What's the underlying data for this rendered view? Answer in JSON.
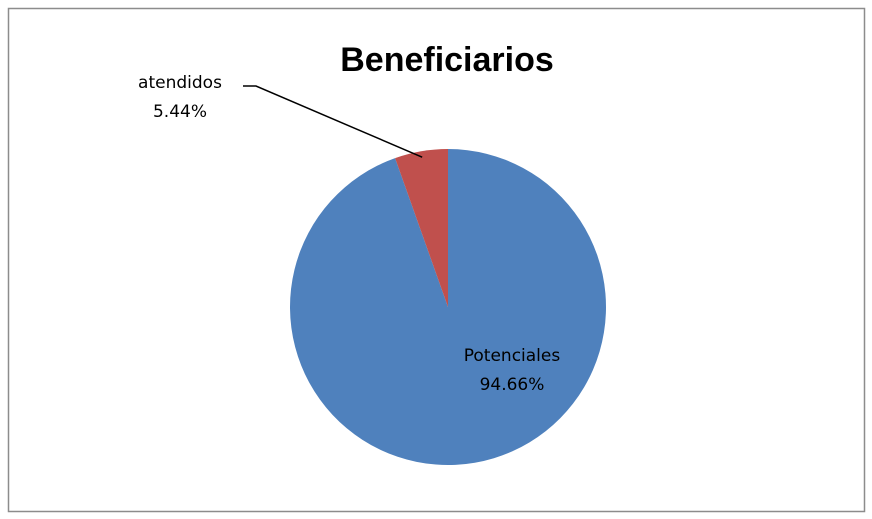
{
  "chart_data": {
    "type": "pie",
    "title": "Beneficiarios",
    "categories": [
      "Potenciales",
      "atendidos"
    ],
    "values": [
      94.66,
      5.44
    ],
    "value_labels": [
      "94.66%",
      "5.44%"
    ],
    "colors": [
      "#4f81bd",
      "#c0504d"
    ]
  }
}
